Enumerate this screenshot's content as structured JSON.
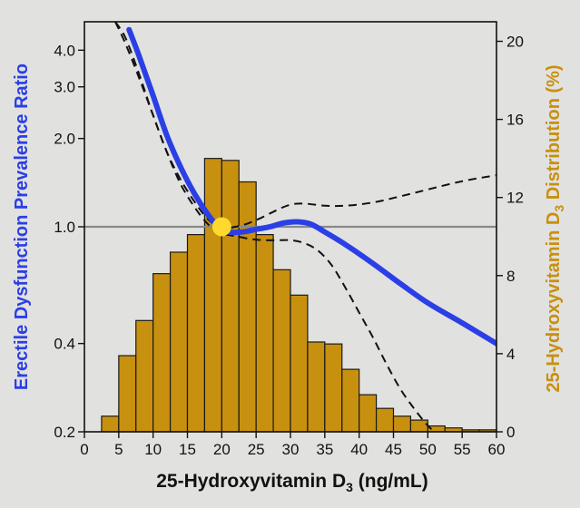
{
  "chart_data": {
    "type": "bar",
    "xlabel": "25-Hydroxyvitamin D",
    "xlabel_sub": "3",
    "xlabel_suffix": " (ng/mL)",
    "ylabel_left": "Erectile Dysfunction Prevalence Ratio",
    "ylabel_right_prefix": "25-Hydroxyvitamin D",
    "ylabel_right_sub": "3",
    "ylabel_right_suffix": " Distribution (%)",
    "xlim": [
      0,
      60
    ],
    "x_ticks": [
      "0",
      "5",
      "10",
      "15",
      "20",
      "25",
      "30",
      "35",
      "40",
      "45",
      "50",
      "55",
      "60"
    ],
    "left_axis": {
      "scale": "log",
      "ylim": [
        0.2,
        5.0
      ],
      "ticks": [
        {
          "value": 4.0,
          "label": "4.0"
        },
        {
          "value": 3.0,
          "label": "3.0"
        },
        {
          "value": 2.0,
          "label": "2.0"
        },
        {
          "value": 1.0,
          "label": "1.0"
        },
        {
          "value": 0.4,
          "label": "0.4"
        },
        {
          "value": 0.2,
          "label": "0.2"
        }
      ]
    },
    "right_axis": {
      "scale": "linear",
      "ylim": [
        0,
        21
      ],
      "ticks": [
        "0",
        "4",
        "8",
        "12",
        "16",
        "20"
      ]
    },
    "histogram": {
      "bin_width": 2.5,
      "bin_starts": [
        2.5,
        5,
        7.5,
        10,
        12.5,
        15,
        17.5,
        20,
        22.5,
        25,
        27.5,
        30,
        32.5,
        35,
        37.5,
        40,
        42.5,
        45,
        47.5,
        50,
        52.5,
        55,
        57.5
      ],
      "values": [
        0.8,
        3.9,
        5.7,
        8.1,
        9.2,
        10.1,
        14.0,
        13.9,
        12.8,
        10.1,
        8.3,
        7.0,
        4.6,
        4.5,
        3.2,
        1.9,
        1.2,
        0.8,
        0.6,
        0.3,
        0.2,
        0.1,
        0.1
      ],
      "color": "#c8900f"
    },
    "curve": {
      "color": "#2b3fe6",
      "x": [
        6.5,
        8,
        10,
        12,
        14,
        16,
        18,
        19.5,
        21,
        23,
        25,
        27,
        29,
        31,
        33,
        35,
        38,
        42,
        46,
        50,
        55,
        60
      ],
      "y": [
        4.7,
        3.8,
        2.8,
        2.05,
        1.6,
        1.3,
        1.1,
        1.0,
        0.96,
        0.96,
        0.98,
        1.0,
        1.03,
        1.04,
        1.02,
        0.96,
        0.87,
        0.75,
        0.64,
        0.55,
        0.47,
        0.4
      ]
    },
    "upper_ci": {
      "x": [
        4.5,
        6,
        8,
        10,
        12,
        14,
        16,
        18,
        20,
        22,
        24,
        26,
        28,
        30,
        32,
        35,
        38,
        42,
        46,
        50,
        55,
        60
      ],
      "y": [
        5.0,
        4.2,
        3.2,
        2.4,
        1.8,
        1.45,
        1.22,
        1.06,
        0.99,
        1.0,
        1.03,
        1.08,
        1.14,
        1.19,
        1.2,
        1.18,
        1.18,
        1.21,
        1.27,
        1.34,
        1.43,
        1.5
      ]
    },
    "lower_ci": {
      "x": [
        4.5,
        6,
        8,
        10,
        12,
        14,
        16,
        18,
        20,
        22,
        24,
        26,
        28,
        30,
        32,
        34,
        36,
        38,
        40,
        42,
        44,
        46,
        48,
        50,
        51.5
      ],
      "y": [
        5.0,
        4.4,
        3.3,
        2.4,
        1.8,
        1.4,
        1.17,
        1.02,
        0.95,
        0.93,
        0.91,
        0.9,
        0.9,
        0.9,
        0.88,
        0.83,
        0.74,
        0.62,
        0.51,
        0.42,
        0.34,
        0.28,
        0.24,
        0.21,
        0.195
      ]
    },
    "reference_line": {
      "y": 1.0,
      "color": "#888888"
    },
    "reference_point": {
      "x": 20,
      "y": 1.0,
      "color": "#ffd92e"
    },
    "left_label_color": "#2b3fe6",
    "right_label_color": "#c8900f"
  }
}
